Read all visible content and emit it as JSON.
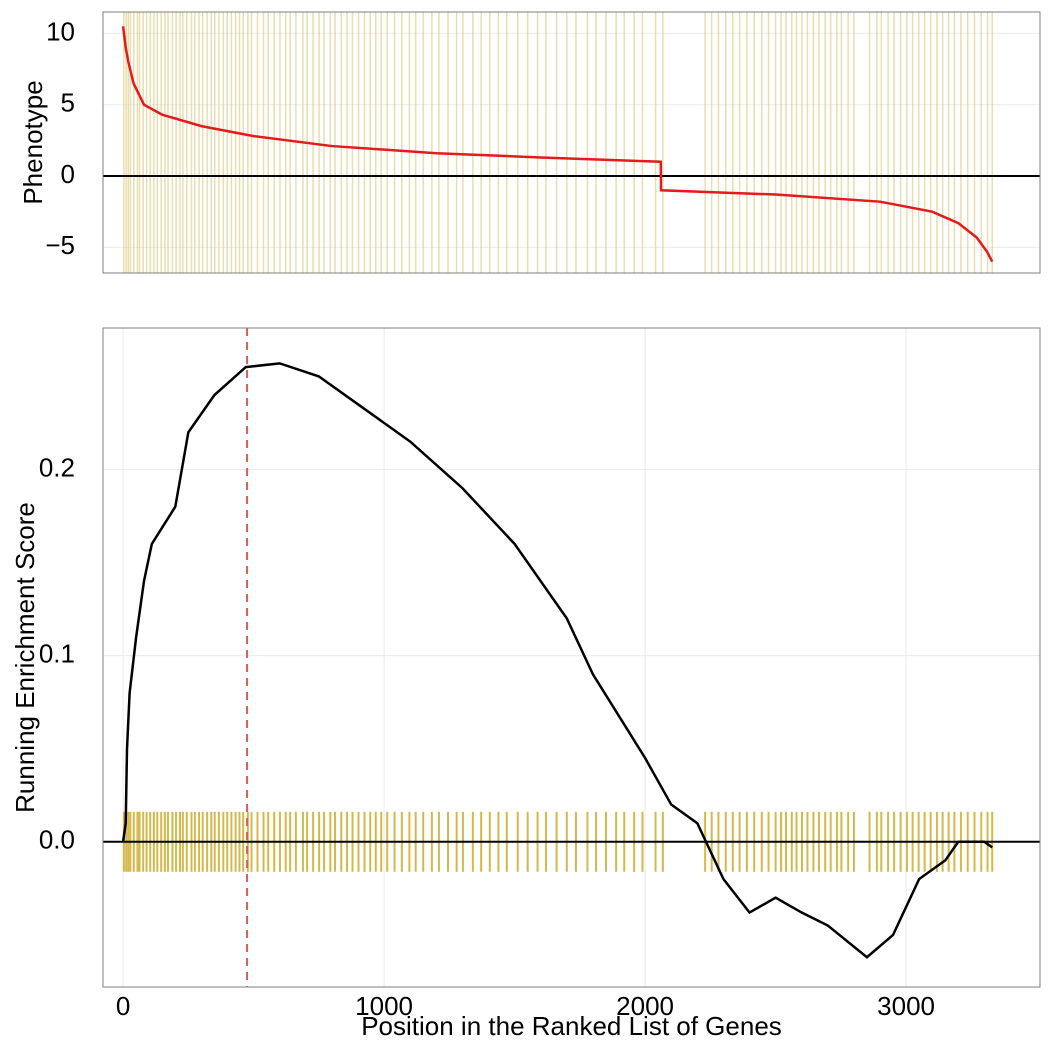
{
  "chart_data": [
    {
      "type": "line",
      "ylabel": "Phenotype",
      "x": [
        0,
        10,
        20,
        40,
        80,
        150,
        300,
        500,
        800,
        1200,
        1600,
        2060,
        2061,
        2500,
        2900,
        3100,
        3200,
        3270,
        3310,
        3330
      ],
      "series": [
        {
          "color": "#e41a1c",
          "values": [
            10.5,
            9,
            8,
            6.5,
            5,
            4.3,
            3.5,
            2.8,
            2.1,
            1.6,
            1.3,
            1.0,
            -1.0,
            -1.3,
            -1.8,
            -2.5,
            -3.3,
            -4.3,
            -5.3,
            -6.0
          ]
        }
      ],
      "hits": [
        3,
        12,
        20,
        28,
        41,
        55,
        63,
        77,
        90,
        104,
        118,
        131,
        146,
        160,
        172,
        189,
        203,
        218,
        229,
        244,
        262,
        275,
        291,
        305,
        322,
        338,
        351,
        367,
        384,
        399,
        415,
        431,
        446,
        460,
        478,
        492,
        515,
        538,
        556,
        579,
        601,
        623,
        640,
        662,
        689,
        705,
        728,
        751,
        770,
        794,
        812,
        836,
        858,
        879,
        902,
        925,
        947,
        968,
        989,
        1012,
        1040,
        1068,
        1097,
        1121,
        1150,
        1183,
        1210,
        1245,
        1278,
        1302,
        1340,
        1372,
        1405,
        1438,
        1470,
        1512,
        1550,
        1588,
        1620,
        1661,
        1700,
        1735,
        1779,
        1812,
        1850,
        1889,
        1920,
        1958,
        1990,
        2040,
        2068,
        2230,
        2255,
        2281,
        2309,
        2336,
        2362,
        2390,
        2418,
        2447,
        2473,
        2500,
        2521,
        2540,
        2562,
        2580,
        2601,
        2622,
        2645,
        2666,
        2690,
        2711,
        2735,
        2752,
        2778,
        2800,
        2860,
        2888,
        2905,
        2931,
        2954,
        2979,
        3003,
        3025,
        3048,
        3071,
        3094,
        3118,
        3140,
        3163,
        3185,
        3210,
        3236,
        3262,
        3288,
        3312,
        3330
      ],
      "hit_color": "#dcc679",
      "xlim": [
        -77,
        3513
      ],
      "ylim": [
        -6.8,
        11.5
      ],
      "yticks": [
        {
          "value": -5,
          "label": "−5"
        },
        0,
        5,
        10
      ],
      "grid": true
    },
    {
      "type": "line",
      "ylabel": "Running Enrichment Score",
      "xlabel": "Position in the Ranked List of Genes",
      "x": [
        0,
        10,
        15,
        25,
        50,
        80,
        110,
        200,
        250,
        350,
        470,
        600,
        750,
        900,
        1100,
        1300,
        1500,
        1700,
        1800,
        2000,
        2100,
        2200,
        2300,
        2400,
        2500,
        2600,
        2700,
        2850,
        2950,
        3050,
        3150,
        3200,
        3300,
        3330
      ],
      "series": [
        {
          "color": "#000000",
          "values": [
            0,
            0.01,
            0.05,
            0.08,
            0.11,
            0.14,
            0.16,
            0.18,
            0.22,
            0.24,
            0.255,
            0.257,
            0.25,
            0.235,
            0.215,
            0.19,
            0.16,
            0.12,
            0.09,
            0.045,
            0.02,
            0.01,
            -0.02,
            -0.038,
            -0.03,
            -0.038,
            -0.045,
            -0.062,
            -0.05,
            -0.02,
            -0.01,
            0.0,
            0.0,
            -0.003
          ]
        }
      ],
      "hits": [
        3,
        12,
        20,
        28,
        41,
        55,
        63,
        77,
        90,
        104,
        118,
        131,
        146,
        160,
        172,
        189,
        203,
        218,
        229,
        244,
        262,
        275,
        291,
        305,
        322,
        338,
        351,
        367,
        384,
        399,
        415,
        431,
        446,
        460,
        478,
        492,
        515,
        538,
        556,
        579,
        601,
        623,
        640,
        662,
        689,
        705,
        728,
        751,
        770,
        794,
        812,
        836,
        858,
        879,
        902,
        925,
        947,
        968,
        989,
        1012,
        1040,
        1068,
        1097,
        1121,
        1150,
        1183,
        1210,
        1245,
        1278,
        1302,
        1340,
        1372,
        1405,
        1438,
        1470,
        1512,
        1550,
        1588,
        1620,
        1661,
        1700,
        1735,
        1779,
        1812,
        1850,
        1889,
        1920,
        1958,
        1990,
        2040,
        2068,
        2230,
        2255,
        2281,
        2309,
        2336,
        2362,
        2390,
        2418,
        2447,
        2473,
        2500,
        2521,
        2540,
        2562,
        2580,
        2601,
        2622,
        2645,
        2666,
        2690,
        2711,
        2735,
        2752,
        2778,
        2800,
        2860,
        2888,
        2905,
        2931,
        2954,
        2979,
        3003,
        3025,
        3048,
        3071,
        3094,
        3118,
        3140,
        3163,
        3185,
        3210,
        3236,
        3262,
        3288,
        3312,
        3330
      ],
      "hit_color": "#d4b84a",
      "vline": 475,
      "vline_color": "#e05a5a",
      "xlim": [
        -77,
        3513
      ],
      "ylim": [
        -0.078,
        0.276
      ],
      "xticks": [
        0,
        1000,
        2000,
        3000
      ],
      "yticks": [
        {
          "value": 0,
          "label": "0.0"
        },
        0.1,
        0.2
      ],
      "grid": true
    }
  ]
}
